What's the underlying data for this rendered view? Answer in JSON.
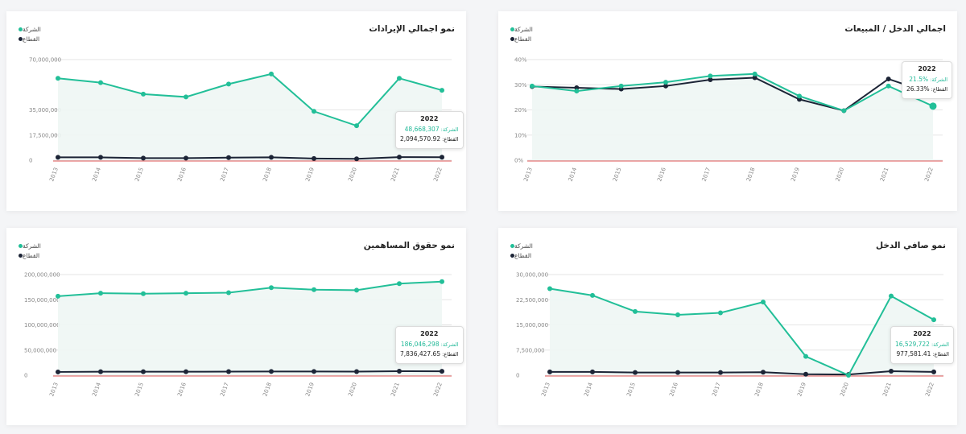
{
  "colors": {
    "company": "#22bf98",
    "sector": "#1c2436",
    "zero_line": "#e05a5a",
    "grid": "#e6e6e6"
  },
  "legend": {
    "company": "الشركة",
    "sector": "القطاع"
  },
  "chart_data": [
    {
      "id": "income-sales",
      "type": "line",
      "title": "اجمالي الدخل / المبيعات",
      "x": [
        "2013",
        "2014",
        "2015",
        "2016",
        "2017",
        "2018",
        "2019",
        "2020",
        "2021",
        "2022"
      ],
      "yticks": [
        "40%",
        "30%",
        "20%",
        "10%",
        "0%"
      ],
      "ylim": [
        0,
        40
      ],
      "series": [
        {
          "name": "الشركة",
          "values": [
            29.5,
            27.5,
            29.5,
            31,
            33.5,
            34.3,
            25.5,
            19.7,
            29.5,
            21.5
          ]
        },
        {
          "name": "القطاع",
          "values": [
            29.3,
            28.8,
            28.3,
            29.5,
            32,
            32.8,
            24.2,
            19.7,
            32.3,
            26.33
          ]
        }
      ],
      "tooltip": {
        "year": "2022",
        "company_value": "21.5%",
        "sector_value": "26.33%",
        "company_label": ":الشركة",
        "sector_label": ":القطاع"
      }
    },
    {
      "id": "revenue",
      "type": "line",
      "title": "نمو اجمالي الإيرادات",
      "x": [
        "2013",
        "2014",
        "2015",
        "2016",
        "2017",
        "2018",
        "2019",
        "2020",
        "2021",
        "2022"
      ],
      "yticks": [
        "70,000,000",
        "35,000,000",
        "17,500,000",
        "0"
      ],
      "ylim": [
        0,
        70000000
      ],
      "series": [
        {
          "name": "الشركة",
          "values": [
            57000000,
            54000000,
            46000000,
            44000000,
            53000000,
            60000000,
            34000000,
            24000000,
            57000000,
            48668307
          ]
        },
        {
          "name": "القطاع",
          "values": [
            2000000,
            2000000,
            1500000,
            1500000,
            1800000,
            2000000,
            1200000,
            1000000,
            2200000,
            2094570.92
          ]
        }
      ],
      "tooltip": {
        "year": "2022",
        "company_value": "48,668,307",
        "sector_value": "2,094,570.92",
        "company_label": ":الشركة",
        "sector_label": ":القطاع"
      }
    },
    {
      "id": "net-income",
      "type": "line",
      "title": "نمو صافي الدخل",
      "x": [
        "2013",
        "2014",
        "2015",
        "2016",
        "2017",
        "2018",
        "2019",
        "2020",
        "2021",
        "2022"
      ],
      "yticks": [
        "30,000,000",
        "22,500,000",
        "15,000,000",
        "7,500,000",
        "0"
      ],
      "ylim": [
        0,
        30000000
      ],
      "series": [
        {
          "name": "الشركة",
          "values": [
            25800000,
            23800000,
            19000000,
            18000000,
            18600000,
            21800000,
            5600000,
            0,
            23600000,
            16529722
          ]
        },
        {
          "name": "القطاع",
          "values": [
            1000000,
            1000000,
            800000,
            800000,
            800000,
            900000,
            300000,
            200000,
            1200000,
            977581.41
          ]
        }
      ],
      "tooltip": {
        "year": "2022",
        "company_value": "16,529,722",
        "sector_value": "977,581.41",
        "company_label": ":الشركة",
        "sector_label": ":القطاع"
      }
    },
    {
      "id": "equity",
      "type": "line",
      "title": "نمو حقوق المساهمين",
      "x": [
        "2013",
        "2014",
        "2015",
        "2016",
        "2017",
        "2018",
        "2019",
        "2020",
        "2021",
        "2022"
      ],
      "yticks": [
        "200,000,000",
        "150,000,000",
        "100,000,000",
        "50,000,000",
        "0"
      ],
      "ylim": [
        0,
        200000000
      ],
      "series": [
        {
          "name": "الشركة",
          "values": [
            157000000,
            163000000,
            162000000,
            163000000,
            164000000,
            174000000,
            170000000,
            169000000,
            182000000,
            186046298
          ]
        },
        {
          "name": "القطاع",
          "values": [
            6500000,
            7000000,
            7000000,
            7000000,
            7200000,
            7500000,
            7500000,
            7200000,
            8000000,
            7836427.65
          ]
        }
      ],
      "tooltip": {
        "year": "2022",
        "company_value": "186,046,298",
        "sector_value": "7,836,427.65",
        "company_label": ":الشركة",
        "sector_label": ":القطاع"
      }
    }
  ]
}
